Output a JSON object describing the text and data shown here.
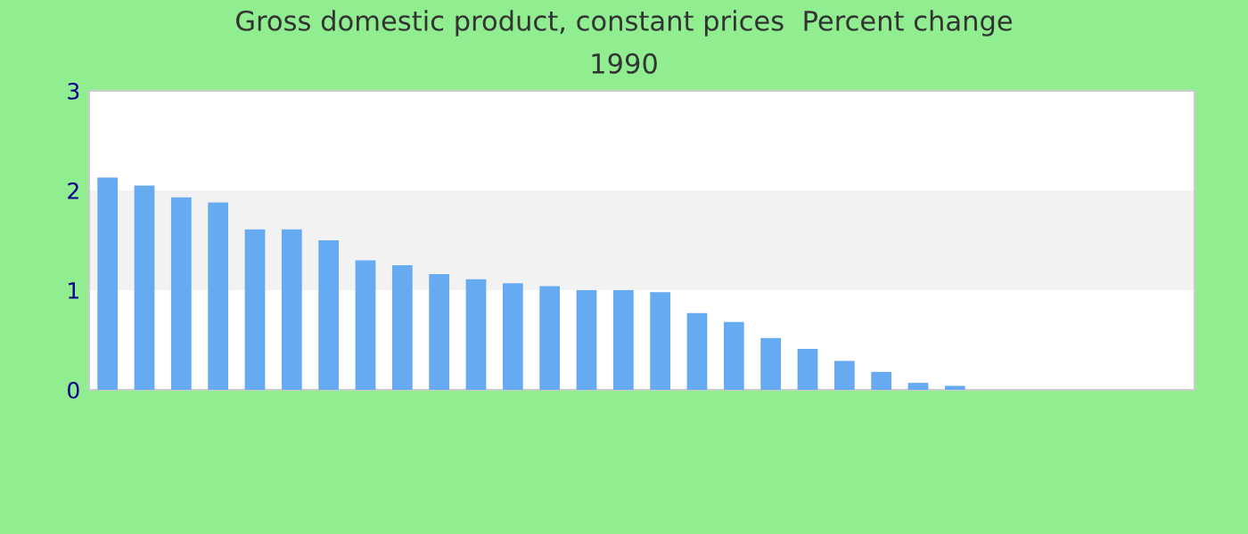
{
  "chart_data": {
    "type": "bar",
    "title": "Gross domestic product, constant prices  Percent change",
    "subtitle": "1990",
    "categories": [
      null,
      null,
      null,
      null,
      null,
      null,
      null,
      null,
      null,
      null,
      null,
      null,
      null,
      null,
      null,
      null,
      null,
      null,
      null,
      null,
      null,
      null,
      null,
      null,
      null,
      null,
      null,
      null,
      null,
      null
    ],
    "values": [
      2.13,
      2.05,
      1.93,
      1.88,
      1.61,
      1.61,
      1.5,
      1.3,
      1.25,
      1.16,
      1.11,
      1.07,
      1.04,
      1.0,
      1.0,
      0.98,
      0.77,
      0.68,
      0.52,
      0.41,
      0.29,
      0.18,
      0.07,
      0.04,
      null,
      null,
      null,
      null,
      null,
      null
    ],
    "color": "#66aaf2",
    "ylim": [
      0,
      3
    ],
    "yticks": [
      0,
      1,
      2,
      3
    ],
    "bands": [
      {
        "axis": "y",
        "from": 1,
        "to": 2,
        "color": "#f2f2f2"
      }
    ]
  }
}
